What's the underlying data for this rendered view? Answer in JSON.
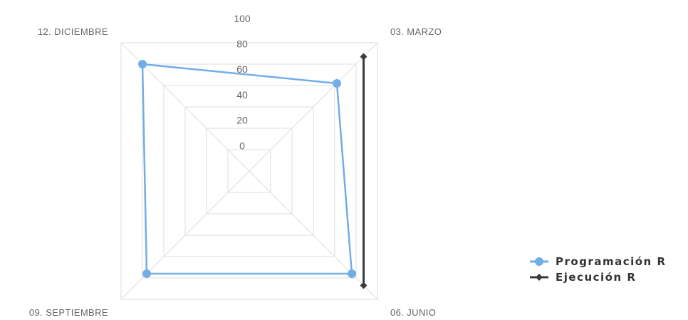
{
  "chart_data": {
    "type": "radar",
    "title": "",
    "categories": [
      "03. MARZO",
      "06. JUNIO",
      "09. SEPTIEMBRE",
      "12. DICIEMBRE"
    ],
    "radial_ticks": [
      "0",
      "20",
      "40",
      "60",
      "80",
      "100"
    ],
    "rmin": -20,
    "rmax": 100,
    "grid": true,
    "legend_position": "right",
    "series": [
      {
        "name": "Programación R",
        "values": [
          62,
          76,
          76,
          80
        ],
        "color": "#72aee6",
        "marker": "circle"
      },
      {
        "name": "Ejecución R",
        "values": [
          87,
          87,
          null,
          null
        ],
        "color": "#3b3b3b",
        "marker": "diamond"
      }
    ]
  }
}
